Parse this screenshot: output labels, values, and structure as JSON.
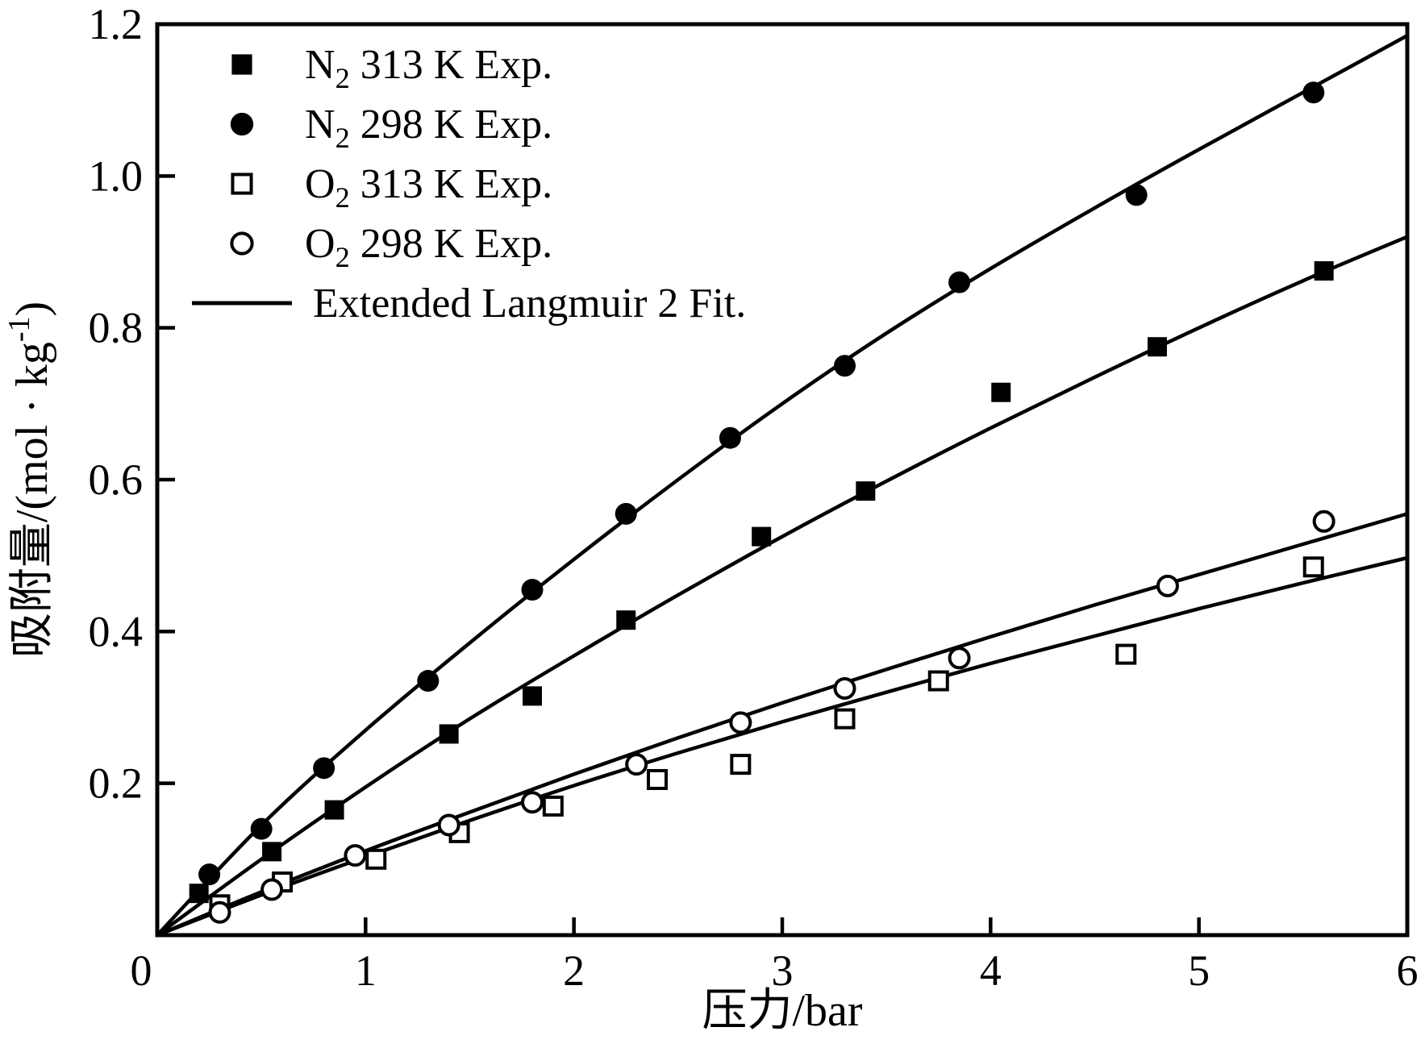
{
  "figure": {
    "background": "#ffffff",
    "ink_color": "#000000"
  },
  "chart_data": {
    "type": "scatter",
    "title": "",
    "xlabel": "压力/bar",
    "ylabel_parts": {
      "pre": "吸附量/(mol · kg",
      "sup": "-1",
      "post": ")"
    },
    "xlim": [
      0,
      6
    ],
    "ylim": [
      0,
      1.2
    ],
    "x_tick_values": [
      0,
      1,
      2,
      3,
      4,
      5,
      6
    ],
    "x_tick_labels": [
      "0",
      "1",
      "2",
      "3",
      "4",
      "5",
      "6"
    ],
    "y_tick_values": [
      0.2,
      0.4,
      0.6,
      0.8,
      1.0,
      1.2
    ],
    "y_tick_labels": [
      "0.2",
      "0.4",
      "0.6",
      "0.8",
      "1.0",
      "1.2"
    ],
    "grid": "off",
    "legend_position": "top-left-inside",
    "series": [
      {
        "id": "n2-313-exp",
        "label_parts": {
          "base": "N",
          "sub": "2",
          "rest": " 313 K Exp."
        },
        "marker": "square-filled",
        "points": [
          [
            0.2,
            0.055
          ],
          [
            0.55,
            0.11
          ],
          [
            0.85,
            0.165
          ],
          [
            1.4,
            0.265
          ],
          [
            1.8,
            0.315
          ],
          [
            2.25,
            0.415
          ],
          [
            2.9,
            0.525
          ],
          [
            3.4,
            0.585
          ],
          [
            4.05,
            0.715
          ],
          [
            4.8,
            0.775
          ],
          [
            5.6,
            0.875
          ]
        ]
      },
      {
        "id": "n2-298-exp",
        "label_parts": {
          "base": "N",
          "sub": "2",
          "rest": " 298 K Exp."
        },
        "marker": "circle-filled",
        "points": [
          [
            0.25,
            0.08
          ],
          [
            0.5,
            0.14
          ],
          [
            0.8,
            0.22
          ],
          [
            1.3,
            0.335
          ],
          [
            1.8,
            0.455
          ],
          [
            2.25,
            0.555
          ],
          [
            2.75,
            0.655
          ],
          [
            3.3,
            0.75
          ],
          [
            3.85,
            0.86
          ],
          [
            4.7,
            0.975
          ],
          [
            5.55,
            1.11
          ]
        ]
      },
      {
        "id": "o2-313-exp",
        "label_parts": {
          "base": "O",
          "sub": "2",
          "rest": " 313 K Exp."
        },
        "marker": "square-open",
        "points": [
          [
            0.3,
            0.04
          ],
          [
            0.6,
            0.07
          ],
          [
            1.05,
            0.1
          ],
          [
            1.45,
            0.135
          ],
          [
            1.9,
            0.17
          ],
          [
            2.4,
            0.205
          ],
          [
            2.8,
            0.225
          ],
          [
            3.3,
            0.285
          ],
          [
            3.75,
            0.335
          ],
          [
            4.65,
            0.37
          ],
          [
            5.55,
            0.485
          ]
        ]
      },
      {
        "id": "o2-298-exp",
        "label_parts": {
          "base": "O",
          "sub": "2",
          "rest": " 298 K Exp."
        },
        "marker": "circle-open",
        "points": [
          [
            0.3,
            0.03
          ],
          [
            0.55,
            0.06
          ],
          [
            0.95,
            0.105
          ],
          [
            1.4,
            0.145
          ],
          [
            1.8,
            0.175
          ],
          [
            2.3,
            0.225
          ],
          [
            2.8,
            0.28
          ],
          [
            3.3,
            0.325
          ],
          [
            3.85,
            0.365
          ],
          [
            4.85,
            0.46
          ],
          [
            5.6,
            0.545
          ]
        ]
      }
    ],
    "fit": {
      "label": "Extended Langmuir 2 Fit.",
      "curves": [
        {
          "for": "n2-298-exp",
          "points": [
            [
              0,
              0
            ],
            [
              0.5,
              0.145
            ],
            [
              1,
              0.27
            ],
            [
              1.5,
              0.385
            ],
            [
              2,
              0.495
            ],
            [
              2.5,
              0.6
            ],
            [
              3,
              0.7
            ],
            [
              3.5,
              0.793
            ],
            [
              4,
              0.878
            ],
            [
              4.5,
              0.958
            ],
            [
              5,
              1.035
            ],
            [
              5.5,
              1.11
            ],
            [
              6,
              1.185
            ]
          ]
        },
        {
          "for": "n2-313-exp",
          "points": [
            [
              0,
              0
            ],
            [
              0.5,
              0.1
            ],
            [
              1,
              0.195
            ],
            [
              1.5,
              0.285
            ],
            [
              2,
              0.368
            ],
            [
              2.5,
              0.448
            ],
            [
              3,
              0.525
            ],
            [
              3.5,
              0.598
            ],
            [
              4,
              0.668
            ],
            [
              4.5,
              0.735
            ],
            [
              5,
              0.8
            ],
            [
              5.5,
              0.862
            ],
            [
              6,
              0.92
            ]
          ]
        },
        {
          "for": "o2-298-exp",
          "points": [
            [
              0,
              0
            ],
            [
              0.5,
              0.057
            ],
            [
              1,
              0.111
            ],
            [
              1.5,
              0.162
            ],
            [
              2,
              0.212
            ],
            [
              2.5,
              0.26
            ],
            [
              3,
              0.306
            ],
            [
              3.5,
              0.35
            ],
            [
              4,
              0.393
            ],
            [
              4.5,
              0.435
            ],
            [
              5,
              0.475
            ],
            [
              5.5,
              0.515
            ],
            [
              6,
              0.555
            ]
          ]
        },
        {
          "for": "o2-313-exp",
          "points": [
            [
              0,
              0
            ],
            [
              0.5,
              0.053
            ],
            [
              1,
              0.103
            ],
            [
              1.5,
              0.151
            ],
            [
              2,
              0.197
            ],
            [
              2.5,
              0.24
            ],
            [
              3,
              0.281
            ],
            [
              3.5,
              0.32
            ],
            [
              4,
              0.358
            ],
            [
              4.5,
              0.394
            ],
            [
              5,
              0.43
            ],
            [
              5.5,
              0.464
            ],
            [
              6,
              0.497
            ]
          ]
        }
      ]
    }
  }
}
